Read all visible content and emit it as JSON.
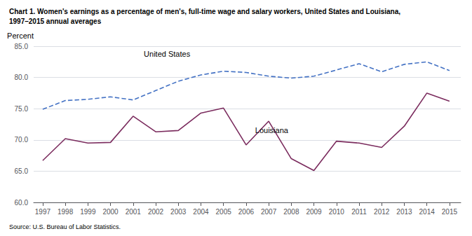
{
  "chart_data": {
    "type": "line",
    "title": "Chart 1. Women's earnings as a percentage of men's, full-time wage and salary workers, United States and Louisiana,\n1997–2015 annual averages",
    "ylabel": "Percent",
    "source": "Source: U.S. Bureau of Labor Statistics.",
    "x": [
      1997,
      1998,
      1999,
      2000,
      2001,
      2002,
      2003,
      2004,
      2005,
      2006,
      2007,
      2008,
      2009,
      2010,
      2011,
      2012,
      2013,
      2014,
      2015
    ],
    "series": [
      {
        "name": "United States",
        "color": "#4472C4",
        "line_style": "dashed",
        "values": [
          74.9,
          76.3,
          76.5,
          76.9,
          76.4,
          77.9,
          79.4,
          80.4,
          81.0,
          80.8,
          80.2,
          79.9,
          80.2,
          81.2,
          82.2,
          80.9,
          82.1,
          82.5,
          81.1
        ]
      },
      {
        "name": "Louisiana",
        "color": "#7B2C5E",
        "line_style": "solid",
        "values": [
          66.7,
          70.2,
          69.5,
          69.6,
          73.8,
          71.3,
          71.5,
          74.3,
          75.1,
          69.2,
          73.0,
          67.0,
          65.1,
          69.8,
          69.5,
          68.8,
          72.2,
          77.5,
          76.2
        ]
      }
    ],
    "annotations": [
      {
        "text": "United States",
        "x": 2002.5,
        "y": 83.2
      },
      {
        "text": "Louisiana",
        "x": 2006.4,
        "y": 72.2
      }
    ],
    "xlim": [
      1996.6,
      2015.5
    ],
    "xticks": [
      1997,
      1998,
      1999,
      2000,
      2001,
      2002,
      2003,
      2004,
      2005,
      2006,
      2007,
      2008,
      2009,
      2010,
      2011,
      2012,
      2013,
      2014,
      2015
    ],
    "ylim": [
      60.0,
      85.0
    ],
    "yticks": [
      {
        "value": 60,
        "label": "60.0"
      },
      {
        "value": 65,
        "label": "65.0"
      },
      {
        "value": 70,
        "label": "70.0"
      },
      {
        "value": 75,
        "label": "75.0"
      },
      {
        "value": 80,
        "label": "80.0"
      },
      {
        "value": 85,
        "label": "85.0"
      }
    ],
    "grid": true
  }
}
